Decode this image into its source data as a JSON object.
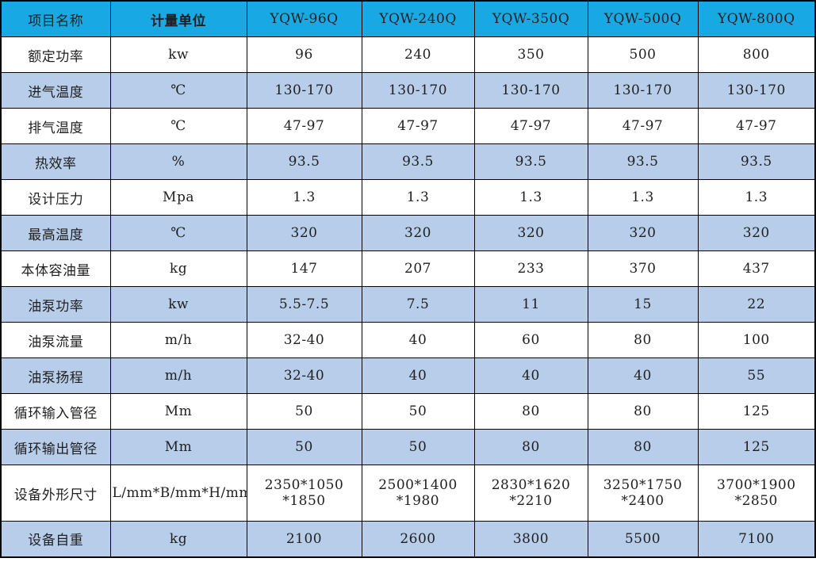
{
  "colors": {
    "header_bg": "#18a8e4",
    "stripe_bg": "#b7cde9",
    "border": "#000000",
    "text": "#1f1f1f",
    "row_bg": "#ffffff"
  },
  "table": {
    "columns": [
      "项目名称",
      "计量单位",
      "YQW-96Q",
      "YQW-240Q",
      "YQW-350Q",
      "YQW-500Q",
      "YQW-800Q"
    ],
    "rows": [
      {
        "name": "额定功率",
        "unit": "kw",
        "values": [
          "96",
          "240",
          "350",
          "500",
          "800"
        ]
      },
      {
        "name": "进气温度",
        "unit": "℃",
        "values": [
          "130-170",
          "130-170",
          "130-170",
          "130-170",
          "130-170"
        ]
      },
      {
        "name": "排气温度",
        "unit": "℃",
        "values": [
          "47-97",
          "47-97",
          "47-97",
          "47-97",
          "47-97"
        ]
      },
      {
        "name": "热效率",
        "unit": "%",
        "values": [
          "93.5",
          "93.5",
          "93.5",
          "93.5",
          "93.5"
        ]
      },
      {
        "name": "设计压力",
        "unit": "Mpa",
        "values": [
          "1.3",
          "1.3",
          "1.3",
          "1.3",
          "1.3"
        ]
      },
      {
        "name": "最高温度",
        "unit": "℃",
        "values": [
          "320",
          "320",
          "320",
          "320",
          "320"
        ]
      },
      {
        "name": "本体容油量",
        "unit": "kg",
        "values": [
          "147",
          "207",
          "233",
          "370",
          "437"
        ]
      },
      {
        "name": "油泵功率",
        "unit": "kw",
        "values": [
          "5.5-7.5",
          "7.5",
          "11",
          "15",
          "22"
        ]
      },
      {
        "name": "油泵流量",
        "unit": "m/h",
        "values": [
          "32-40",
          "40",
          "60",
          "80",
          "100"
        ]
      },
      {
        "name": "油泵扬程",
        "unit": "m/h",
        "values": [
          "32-40",
          "40",
          "40",
          "40",
          "55"
        ]
      },
      {
        "name": "循环输入管径",
        "unit": "Mm",
        "values": [
          "50",
          "50",
          "80",
          "80",
          "125"
        ]
      },
      {
        "name": "循环输出管径",
        "unit": "Mm",
        "values": [
          "50",
          "50",
          "80",
          "80",
          "125"
        ]
      },
      {
        "name": "设备外形尺寸",
        "unit": "L/mm*B/mm*H/mm",
        "values": [
          "2350*1050\n*1850",
          "2500*1400\n*1980",
          "2830*1620\n*2210",
          "3250*1750\n*2400",
          "3700*1900\n*2850"
        ]
      },
      {
        "name": "设备自重",
        "unit": "kg",
        "values": [
          "2100",
          "2600",
          "3800",
          "5500",
          "7100"
        ]
      }
    ]
  },
  "chart_data": {
    "type": "table",
    "title": "",
    "categories": [
      "YQW-96Q",
      "YQW-240Q",
      "YQW-350Q",
      "YQW-500Q",
      "YQW-800Q"
    ],
    "series": [
      {
        "name": "额定功率 (kw)",
        "values": [
          96,
          240,
          350,
          500,
          800
        ]
      },
      {
        "name": "进气温度 (℃)",
        "values": [
          "130-170",
          "130-170",
          "130-170",
          "130-170",
          "130-170"
        ]
      },
      {
        "name": "排气温度 (℃)",
        "values": [
          "47-97",
          "47-97",
          "47-97",
          "47-97",
          "47-97"
        ]
      },
      {
        "name": "热效率 (%)",
        "values": [
          93.5,
          93.5,
          93.5,
          93.5,
          93.5
        ]
      },
      {
        "name": "设计压力 (Mpa)",
        "values": [
          1.3,
          1.3,
          1.3,
          1.3,
          1.3
        ]
      },
      {
        "name": "最高温度 (℃)",
        "values": [
          320,
          320,
          320,
          320,
          320
        ]
      },
      {
        "name": "本体容油量 (kg)",
        "values": [
          147,
          207,
          233,
          370,
          437
        ]
      },
      {
        "name": "油泵功率 (kw)",
        "values": [
          "5.5-7.5",
          7.5,
          11,
          15,
          22
        ]
      },
      {
        "name": "油泵流量 (m/h)",
        "values": [
          "32-40",
          40,
          60,
          80,
          100
        ]
      },
      {
        "name": "油泵扬程 (m/h)",
        "values": [
          "32-40",
          40,
          40,
          40,
          55
        ]
      },
      {
        "name": "循环输入管径 (Mm)",
        "values": [
          50,
          50,
          80,
          80,
          125
        ]
      },
      {
        "name": "循环输出管径 (Mm)",
        "values": [
          50,
          50,
          80,
          80,
          125
        ]
      },
      {
        "name": "设备外形尺寸 (L/mm*B/mm*H/mm)",
        "values": [
          "2350*1050*1850",
          "2500*1400*1980",
          "2830*1620*2210",
          "3250*1750*2400",
          "3700*1900*2850"
        ]
      },
      {
        "name": "设备自重 (kg)",
        "values": [
          2100,
          2600,
          3800,
          5500,
          7100
        ]
      }
    ]
  }
}
